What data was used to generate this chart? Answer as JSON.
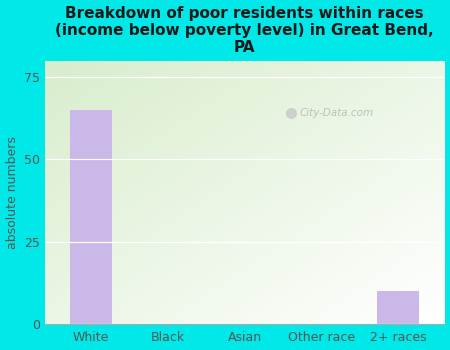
{
  "title": "Breakdown of poor residents within races\n(income below poverty level) in Great Bend,\nPA",
  "categories": [
    "White",
    "Black",
    "Asian",
    "Other race",
    "2+ races"
  ],
  "values": [
    65,
    0,
    0,
    0,
    10
  ],
  "bar_color": "#c9b8e8",
  "ylabel": "absolute numbers",
  "ylim": [
    0,
    80
  ],
  "yticks": [
    0,
    25,
    50,
    75
  ],
  "bg_color": "#00e8e8",
  "plot_bg_color_tl": "#d8edcc",
  "plot_bg_color_br": "#ffffff",
  "watermark": "City-Data.com",
  "title_fontsize": 11,
  "label_fontsize": 9,
  "tick_fontsize": 9,
  "title_color": "#1a1a1a",
  "axis_label_color": "#555555"
}
